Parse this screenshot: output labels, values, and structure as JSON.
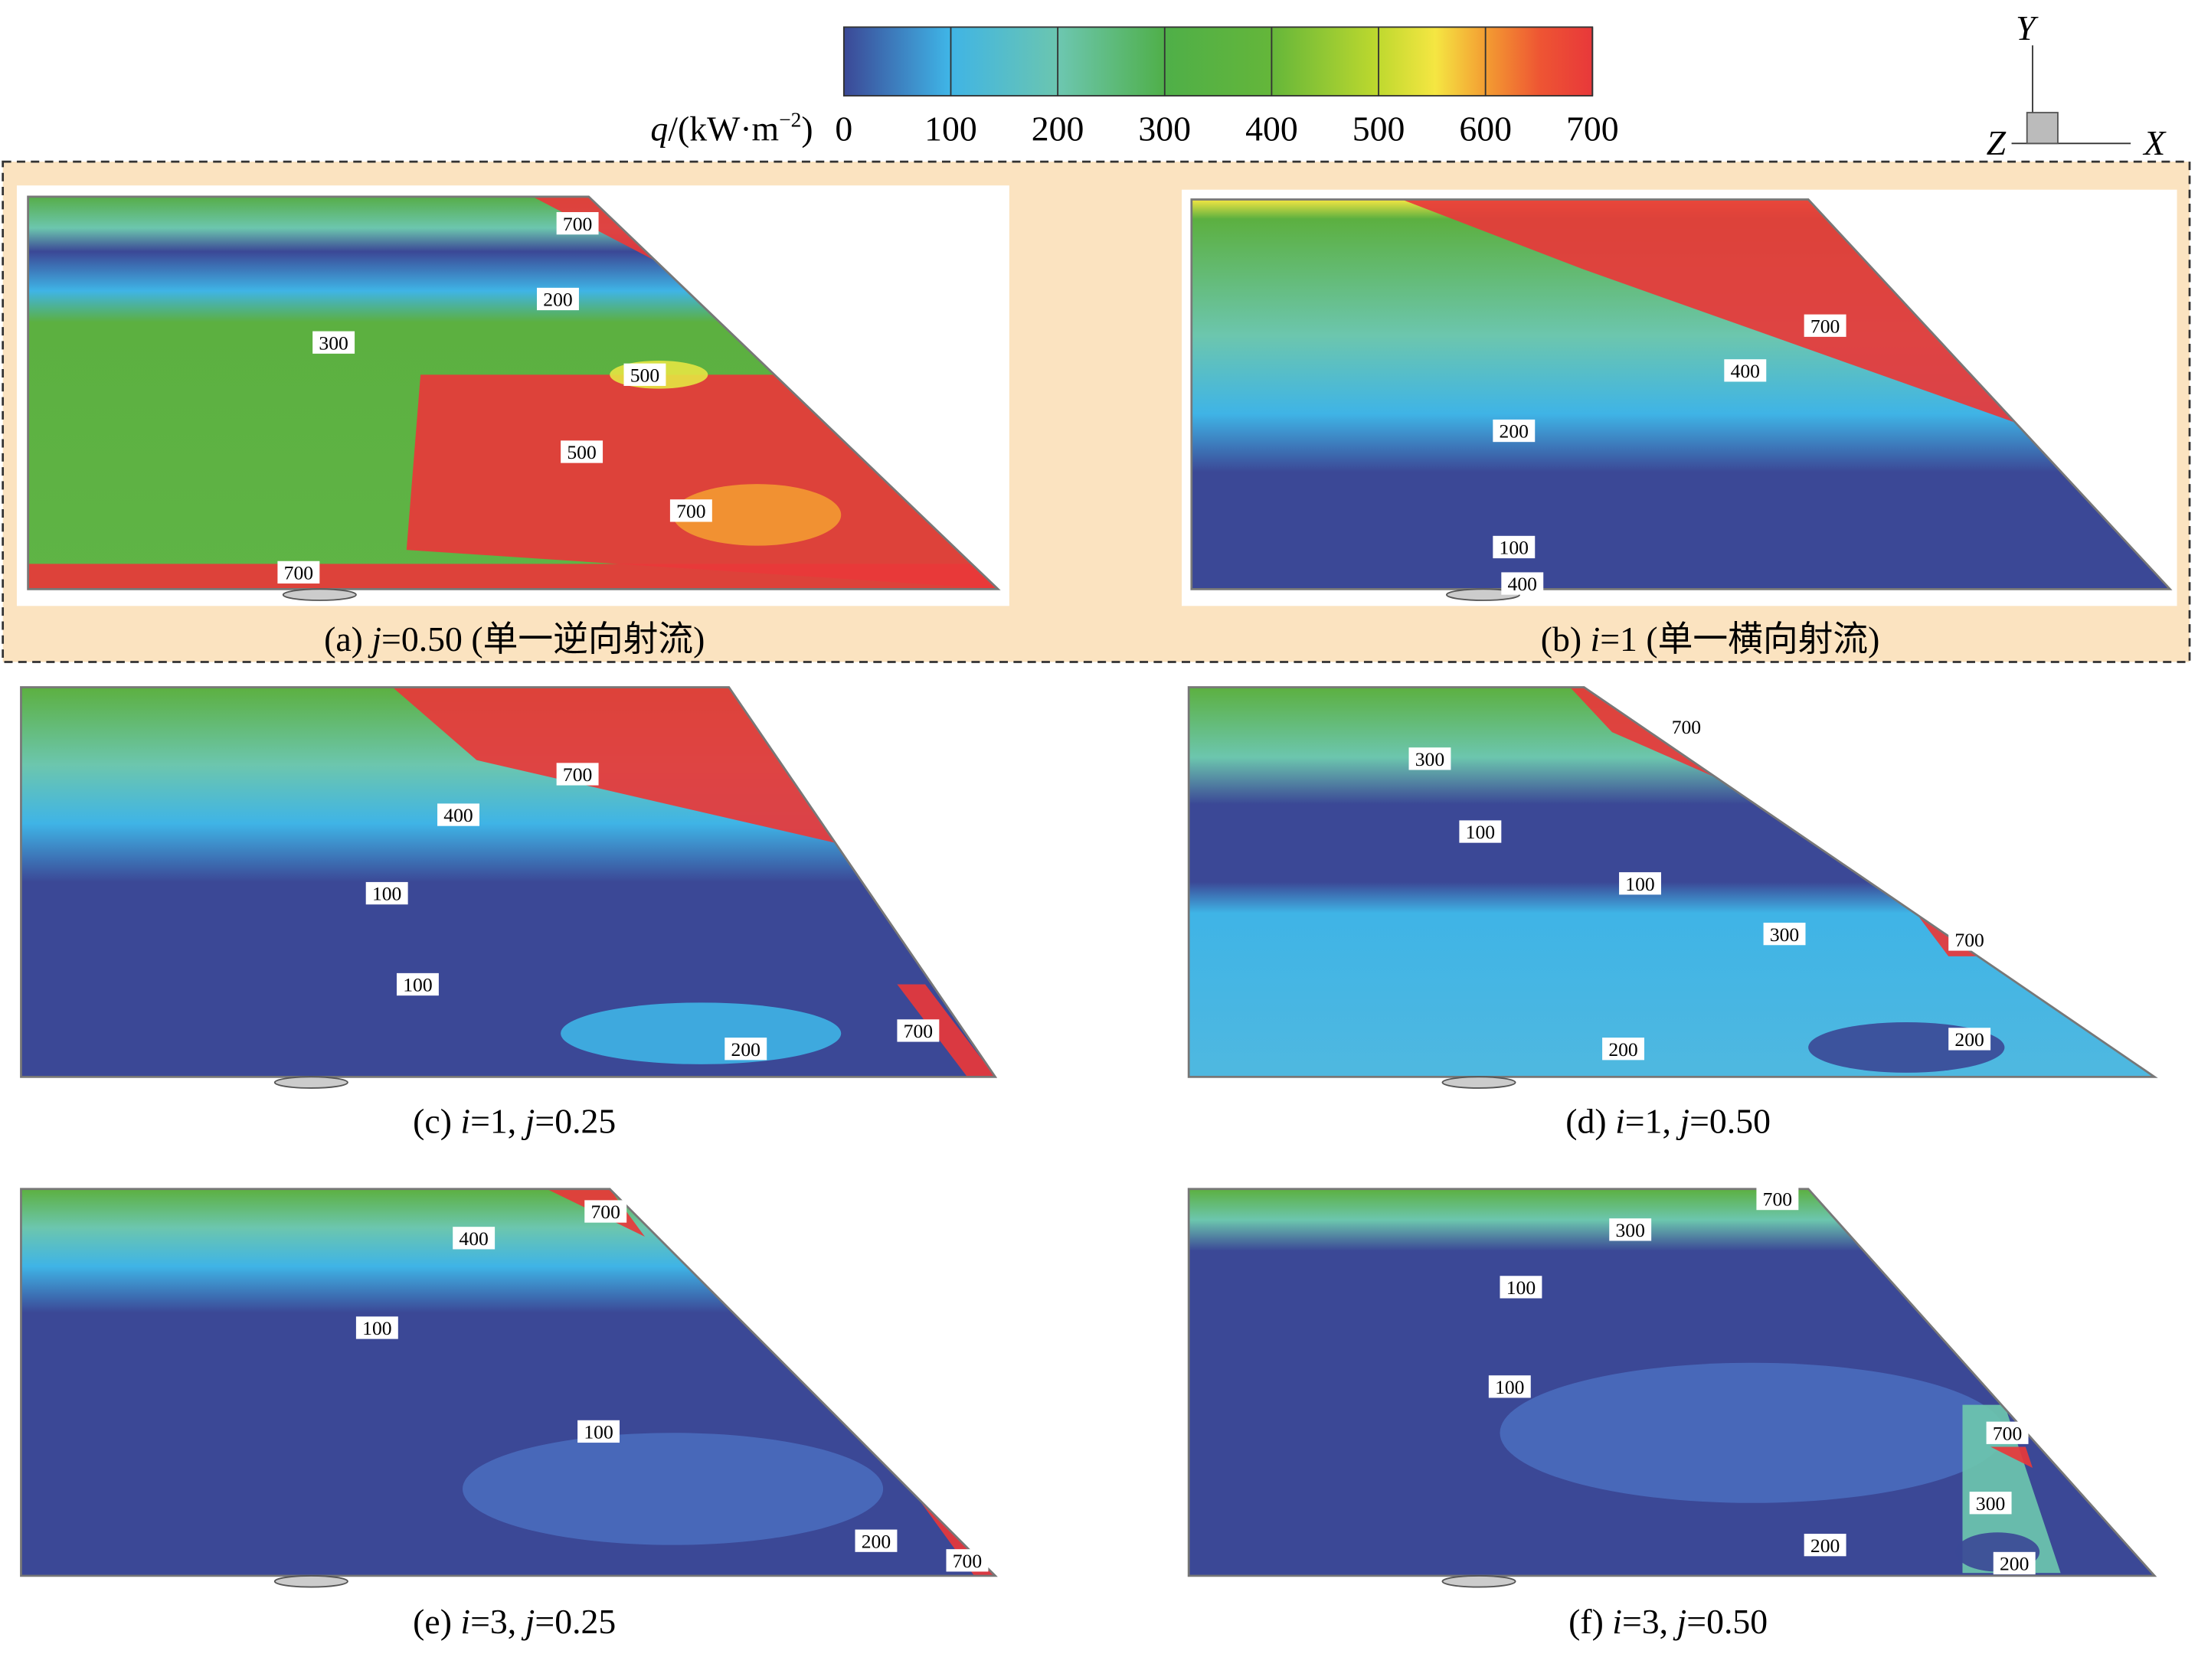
{
  "legend": {
    "title_parts": [
      "q",
      "/(kW·m",
      "−2",
      ")"
    ],
    "lim": [
      0,
      700
    ],
    "ticks": [
      0,
      100,
      200,
      300,
      400,
      500,
      600,
      700
    ]
  },
  "axes_icon": {
    "y": "Y",
    "z": "Z",
    "x": "X"
  },
  "panels": [
    {
      "caption": [
        "(a) ",
        "j",
        "=0.50 (单一逆向射流)"
      ],
      "contour_labels": [
        700,
        200,
        300,
        500,
        500,
        700,
        700
      ]
    },
    {
      "caption": [
        "(b) ",
        "i",
        "=1 (单一横向射流)"
      ],
      "contour_labels": [
        700,
        400,
        200,
        100,
        400
      ]
    },
    {
      "caption": [
        "(c) ",
        "i",
        "=1,  ",
        "j",
        "=0.25"
      ],
      "contour_labels": [
        700,
        400,
        100,
        100,
        200,
        700
      ]
    },
    {
      "caption": [
        "(d) ",
        "i",
        "=1,  ",
        "j",
        "=0.50"
      ],
      "contour_labels": [
        700,
        300,
        100,
        100,
        300,
        700,
        200,
        200
      ]
    },
    {
      "caption": [
        "(e) ",
        "i",
        "=3,  ",
        "j",
        "=0.25"
      ],
      "contour_labels": [
        700,
        400,
        100,
        100,
        200,
        700
      ]
    },
    {
      "caption": [
        "(f) ",
        "i",
        "=3,  ",
        "j",
        "=0.50"
      ],
      "contour_labels": [
        700,
        300,
        100,
        100,
        700,
        300,
        200,
        200
      ]
    }
  ]
}
